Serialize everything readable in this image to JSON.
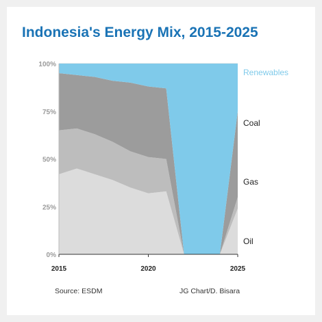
{
  "title": "Indonesia's Energy Mix, 2015-2025",
  "source": "Source: ESDM",
  "credit": "JG Chart/D. Bisara",
  "colors": {
    "Oil": "#dcdcdc",
    "Gas": "#bdbdbd",
    "Coal": "#9c9c9c",
    "Renewables": "#7fcaea",
    "renewables_label": "#7fcaea",
    "axis_text": "#9a9a9a",
    "grid": "#d8d8d8"
  },
  "chart_data": {
    "type": "area",
    "stacked": true,
    "x": [
      2015,
      2016,
      2017,
      2018,
      2019,
      2020,
      2021,
      2022,
      2023,
      2024,
      2025
    ],
    "series": [
      {
        "name": "Oil",
        "values": [
          42,
          45,
          42,
          39,
          35,
          32,
          33,
          0,
          0,
          0,
          24
        ]
      },
      {
        "name": "Gas",
        "values": [
          23,
          21,
          21,
          20,
          19,
          19,
          17,
          0,
          0,
          0,
          6
        ]
      },
      {
        "name": "Coal",
        "values": [
          30,
          28,
          30,
          32,
          36,
          37,
          37,
          0,
          0,
          0,
          45
        ]
      },
      {
        "name": "Renewables",
        "values": [
          5,
          6,
          7,
          9,
          10,
          12,
          13,
          100,
          100,
          100,
          25
        ]
      }
    ],
    "x_ticks": [
      "2015",
      "2020",
      "2025"
    ],
    "y_ticks": [
      "0%",
      "25%",
      "50%",
      "75%",
      "100%"
    ],
    "ylim": [
      0,
      100
    ],
    "xlim": [
      2015,
      2025
    ],
    "grid": true,
    "legend": "direct labels at right"
  }
}
